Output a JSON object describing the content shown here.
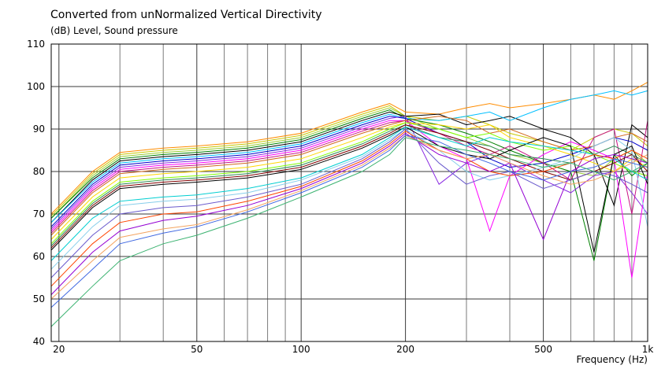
{
  "chart_data": {
    "type": "line",
    "title": "Converted from unNormalized Vertical Directivity",
    "ylabel": "(dB)  Level, Sound pressure",
    "xlabel": "Frequency  (Hz)",
    "x_scale": "log",
    "xlim": [
      19,
      1000
    ],
    "ylim": [
      40,
      110
    ],
    "x_ticks": [
      20,
      50,
      100,
      200,
      500,
      1000
    ],
    "x_tick_labels": [
      "20",
      "50",
      "100",
      "200",
      "500",
      "1k"
    ],
    "y_ticks": [
      40,
      50,
      60,
      70,
      80,
      90,
      100,
      110
    ],
    "x_minor_grid": [
      30,
      40,
      60,
      70,
      80,
      90,
      300,
      400,
      600,
      700,
      800,
      900
    ],
    "grid": true,
    "plot_background": "#ffffff",
    "x": [
      19,
      25,
      30,
      40,
      50,
      70,
      100,
      150,
      180,
      200,
      250,
      300,
      350,
      400,
      500,
      600,
      700,
      800,
      900,
      1000
    ],
    "series": [
      {
        "color": "#ff8c00",
        "values": [
          70,
          80,
          84.5,
          85.5,
          86,
          87,
          89,
          94,
          96,
          94,
          93.5,
          95,
          96,
          95,
          96,
          97,
          98,
          97,
          99,
          101
        ]
      },
      {
        "color": "#c8c800",
        "values": [
          69.5,
          79.5,
          84,
          85,
          85.5,
          86.5,
          88.5,
          93.5,
          95.5,
          93,
          92,
          93,
          91,
          89,
          87,
          85,
          88,
          90,
          89,
          86
        ]
      },
      {
        "color": "#9acd32",
        "values": [
          69,
          79,
          83.5,
          84.5,
          85,
          86,
          88,
          93,
          95,
          93,
          90,
          88,
          86,
          84,
          82,
          80,
          79,
          83,
          85,
          82
        ]
      },
      {
        "color": "#008000",
        "values": [
          69,
          78.5,
          83,
          84,
          84.5,
          85.5,
          87.5,
          92.5,
          94.5,
          92.5,
          91,
          89,
          87,
          85,
          82,
          80,
          59,
          84,
          79,
          82
        ]
      },
      {
        "color": "#000000",
        "values": [
          68,
          78,
          82.5,
          83.5,
          84,
          85,
          87,
          92,
          94,
          93,
          93.5,
          91,
          92,
          93,
          90,
          88,
          84,
          72,
          91,
          88
        ]
      },
      {
        "color": "#00bfff",
        "values": [
          68,
          77.5,
          82,
          83,
          83.5,
          84.5,
          86.5,
          91.5,
          93.5,
          92.5,
          92,
          93,
          94,
          92,
          95,
          97,
          98,
          99,
          98,
          99
        ]
      },
      {
        "color": "#0000cd",
        "values": [
          67,
          77,
          81.5,
          82.5,
          83,
          84,
          86,
          91,
          93,
          92.5,
          89,
          87,
          83,
          81,
          82,
          84,
          86,
          88,
          87,
          85
        ]
      },
      {
        "color": "#8a2be2",
        "values": [
          66.5,
          76.5,
          81,
          82,
          82.5,
          83.5,
          85.5,
          90.5,
          92.5,
          93,
          77,
          82,
          84,
          82,
          78,
          75,
          79,
          80,
          75,
          70
        ]
      },
      {
        "color": "#ff00ff",
        "values": [
          66,
          76,
          80.5,
          81.5,
          82,
          83,
          85,
          90,
          92,
          92,
          86,
          83,
          66,
          79,
          84,
          87,
          85,
          83,
          55,
          80
        ]
      },
      {
        "color": "#c71585",
        "values": [
          65.5,
          75.5,
          80,
          81,
          81.5,
          82.5,
          84.5,
          89.5,
          91.5,
          92,
          89,
          86,
          84,
          86,
          82,
          78,
          88,
          90,
          70,
          92
        ]
      },
      {
        "color": "#d2691e",
        "values": [
          65,
          75,
          79.5,
          80.5,
          81,
          82,
          84,
          89,
          91,
          92,
          93,
          92,
          89,
          90,
          87,
          85,
          86,
          88,
          89,
          87
        ]
      },
      {
        "color": "#ffd700",
        "values": [
          64,
          74,
          78.5,
          79.5,
          80,
          81,
          83,
          88,
          90.5,
          91.5,
          91,
          90,
          91,
          88,
          86,
          84,
          82,
          80,
          83,
          81
        ]
      },
      {
        "color": "#7fff00",
        "values": [
          63,
          73,
          77.5,
          78.5,
          79,
          80,
          82,
          87,
          90,
          91.5,
          90,
          88,
          89,
          87,
          85,
          86,
          84,
          82,
          80,
          79
        ]
      },
      {
        "color": "#2e8b57",
        "values": [
          62.5,
          72.5,
          77,
          78,
          78.5,
          79.5,
          81.5,
          86.5,
          89.5,
          91,
          88,
          87,
          86,
          84,
          83,
          82,
          84,
          86,
          84,
          82
        ]
      },
      {
        "color": "#800000",
        "values": [
          62,
          72,
          76.5,
          77.5,
          78,
          79,
          81,
          86,
          89,
          91,
          89,
          87,
          85,
          83,
          80,
          78,
          80,
          82,
          84,
          80
        ]
      },
      {
        "color": "#000000",
        "values": [
          61.5,
          71.5,
          76,
          77,
          77.5,
          78.5,
          80.5,
          85.5,
          88.5,
          90.5,
          86,
          84,
          83,
          85,
          88,
          86,
          61,
          84,
          86,
          77
        ]
      },
      {
        "color": "#00ced1",
        "values": [
          59,
          69,
          73,
          74,
          74.5,
          76,
          78.5,
          84,
          88,
          90.5,
          88,
          86,
          88,
          87,
          86,
          85,
          84,
          83,
          80,
          78
        ]
      },
      {
        "color": "#87ceeb",
        "values": [
          57,
          67,
          72,
          73,
          73.5,
          75,
          78,
          83.5,
          87.5,
          90,
          85,
          80,
          78,
          79,
          81,
          83,
          86,
          88,
          85,
          67
        ]
      },
      {
        "color": "#6a5acd",
        "values": [
          55,
          65,
          70,
          71.5,
          72,
          74,
          77,
          83,
          87,
          90,
          82,
          77,
          79,
          80,
          76,
          78,
          80,
          79,
          77,
          75
        ]
      },
      {
        "color": "#ff4500",
        "values": [
          53,
          63,
          68,
          70,
          70.5,
          73,
          76.5,
          82.5,
          86.5,
          89.5,
          85,
          83,
          80,
          79,
          80,
          82,
          84,
          83,
          85,
          83
        ]
      },
      {
        "color": "#9400d3",
        "values": [
          51,
          61,
          66,
          68.5,
          69.5,
          72,
          76,
          82,
          86,
          89,
          84,
          82,
          80,
          82,
          64,
          80,
          83,
          84,
          83,
          82
        ]
      },
      {
        "color": "#f4a460",
        "values": [
          50,
          59,
          64.5,
          66.5,
          67.5,
          71,
          75.5,
          81.5,
          85.5,
          88.5,
          85,
          83,
          84,
          82,
          79,
          77,
          78,
          80,
          82,
          84
        ]
      },
      {
        "color": "#4169e1",
        "values": [
          48,
          57,
          63,
          65.5,
          67,
          70.5,
          75,
          81,
          85,
          88.5,
          87,
          84,
          82,
          80,
          78,
          80,
          81,
          83,
          82,
          81
        ]
      },
      {
        "color": "#3cb371",
        "values": [
          43.5,
          53,
          59,
          63,
          65,
          69,
          74,
          80,
          84,
          88,
          86,
          85,
          84,
          83,
          81,
          82,
          80,
          78,
          80,
          82
        ]
      }
    ]
  }
}
